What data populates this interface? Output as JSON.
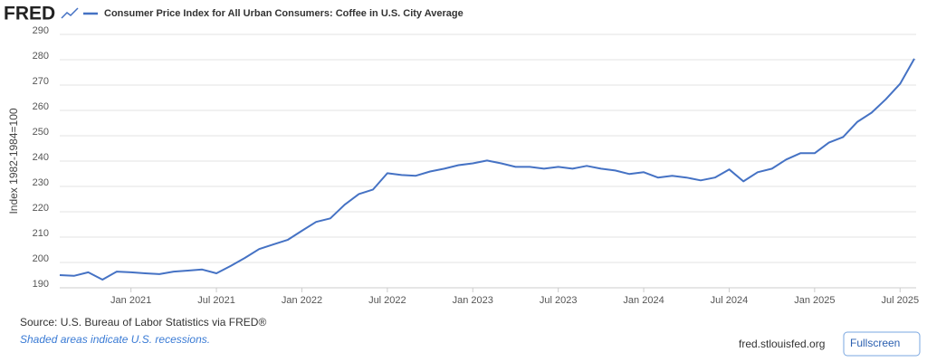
{
  "logo": "FRED",
  "source": "Source: U.S. Bureau of Labor Statistics via FRED®",
  "note": "Shaded areas indicate U.S. recessions.",
  "site": "fred.stlouisfed.org",
  "button": "Fullscreen",
  "chart_data": {
    "type": "line",
    "title": "Consumer Price Index for All Urban Consumers: Coffee in U.S. City Average",
    "ylabel": "Index 1982-1984=100",
    "x": [
      "2020-08",
      "2020-09",
      "2020-10",
      "2020-11",
      "2020-12",
      "2021-01",
      "2021-02",
      "2021-03",
      "2021-04",
      "2021-05",
      "2021-06",
      "2021-07",
      "2021-08",
      "2021-09",
      "2021-10",
      "2021-11",
      "2021-12",
      "2022-01",
      "2022-02",
      "2022-03",
      "2022-04",
      "2022-05",
      "2022-06",
      "2022-07",
      "2022-08",
      "2022-09",
      "2022-10",
      "2022-11",
      "2022-12",
      "2023-01",
      "2023-02",
      "2023-03",
      "2023-04",
      "2023-05",
      "2023-06",
      "2023-07",
      "2023-08",
      "2023-09",
      "2023-10",
      "2023-11",
      "2023-12",
      "2024-01",
      "2024-02",
      "2024-03",
      "2024-04",
      "2024-05",
      "2024-06",
      "2024-07",
      "2024-08",
      "2024-09",
      "2024-10",
      "2024-11",
      "2024-12",
      "2025-01",
      "2025-02",
      "2025-03",
      "2025-04",
      "2025-05",
      "2025-06",
      "2025-07",
      "2025-08"
    ],
    "series": [
      {
        "name": "Consumer Price Index for All Urban Consumers: Coffee in U.S. City Average",
        "color": "#4572c4",
        "values": [
          195.0,
          194.7,
          196.1,
          193.2,
          196.4,
          196.1,
          195.7,
          195.4,
          196.4,
          196.8,
          197.2,
          195.7,
          198.6,
          201.8,
          205.3,
          207.1,
          208.9,
          212.5,
          216.0,
          217.4,
          222.8,
          227.0,
          228.8,
          235.2,
          234.5,
          234.2,
          235.9,
          237.0,
          238.4,
          239.1,
          240.2,
          239.1,
          237.7,
          237.7,
          237.0,
          237.7,
          237.0,
          238.1,
          237.0,
          236.3,
          234.9,
          235.6,
          233.5,
          234.2,
          233.5,
          232.4,
          233.5,
          236.7,
          232.0,
          235.6,
          237.0,
          240.6,
          243.1,
          243.1,
          247.3,
          249.5,
          255.5,
          259.1,
          264.4,
          270.5,
          280.4
        ]
      }
    ],
    "ylim": [
      190,
      290
    ],
    "yticks": [
      190,
      200,
      210,
      220,
      230,
      240,
      250,
      260,
      270,
      280,
      290
    ],
    "xticks": [
      {
        "value": "2021-01",
        "label": "Jan 2021"
      },
      {
        "value": "2021-07",
        "label": "Jul 2021"
      },
      {
        "value": "2022-01",
        "label": "Jan 2022"
      },
      {
        "value": "2022-07",
        "label": "Jul 2022"
      },
      {
        "value": "2023-01",
        "label": "Jan 2023"
      },
      {
        "value": "2023-07",
        "label": "Jul 2023"
      },
      {
        "value": "2024-01",
        "label": "Jan 2024"
      },
      {
        "value": "2024-07",
        "label": "Jul 2024"
      },
      {
        "value": "2025-01",
        "label": "Jan 2025"
      },
      {
        "value": "2025-07",
        "label": "Jul 2025"
      }
    ],
    "grid": true
  }
}
